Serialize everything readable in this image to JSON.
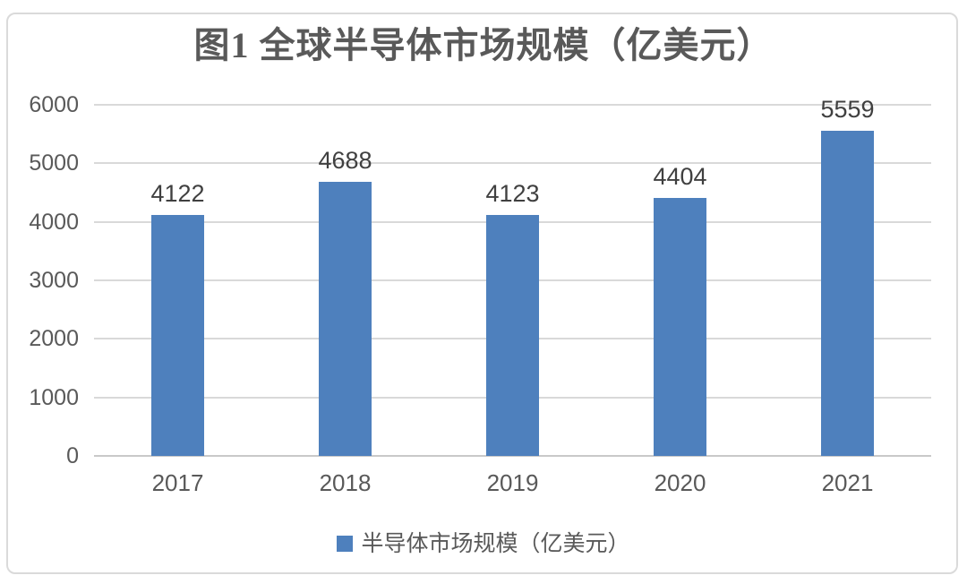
{
  "title": "图1  全球半导体市场规模（亿美元）",
  "legend": {
    "label": "半导体市场规模（亿美元）"
  },
  "colors": {
    "bar": "#4E80BD",
    "title_text": "#595959",
    "axis_text": "#595959",
    "value_label_text": "#404040",
    "gridline": "#D9D9D9",
    "axis_line": "#C9C9C9",
    "border": "#DADADA",
    "background": "#FFFFFF"
  },
  "chart_data": {
    "type": "bar",
    "title": "图1  全球半导体市场规模（亿美元）",
    "categories": [
      "2017",
      "2018",
      "2019",
      "2020",
      "2021"
    ],
    "series": [
      {
        "name": "半导体市场规模（亿美元）",
        "values": [
          4122,
          4688,
          4123,
          4404,
          5559
        ]
      }
    ],
    "xlabel": "",
    "ylabel": "",
    "ylim": [
      0,
      6000
    ],
    "yticks": [
      0,
      1000,
      2000,
      3000,
      4000,
      5000,
      6000
    ],
    "grid": true,
    "legend_position": "bottom",
    "data_labels": true
  }
}
